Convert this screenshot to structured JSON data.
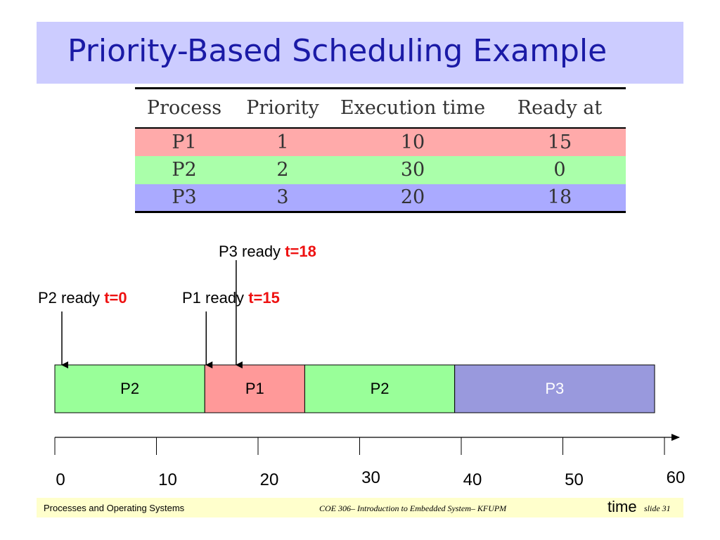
{
  "title": "Priority-Based Scheduling Example",
  "table": {
    "headers": [
      "Process",
      "Priority",
      "Execution time",
      "Ready at"
    ],
    "rows": [
      {
        "cells": [
          "P1",
          "1",
          "10",
          "15"
        ],
        "color": "#ffaaaa"
      },
      {
        "cells": [
          "P2",
          "2",
          "30",
          "0"
        ],
        "color": "#aaffaa"
      },
      {
        "cells": [
          "P3",
          "3",
          "20",
          "18"
        ],
        "color": "#aaaaff"
      }
    ]
  },
  "annotations": [
    {
      "text": "P2 ready",
      "time_label": "t=0",
      "t": 0
    },
    {
      "text": "P1 ready",
      "time_label": "t=15",
      "t": 15
    },
    {
      "text": "P3 ready",
      "time_label": "t=18",
      "t": 18
    }
  ],
  "timeline": {
    "segments": [
      {
        "label": "P2",
        "start": 0,
        "end": 15,
        "color": "#99ff99",
        "text_color": "#000000"
      },
      {
        "label": "P1",
        "start": 15,
        "end": 25,
        "color": "#ff9999",
        "text_color": "#000000"
      },
      {
        "label": "P2",
        "start": 25,
        "end": 40,
        "color": "#99ff99",
        "text_color": "#000000"
      },
      {
        "label": "P3",
        "start": 40,
        "end": 60,
        "color": "#9999dd",
        "text_color": "#ffffff"
      }
    ],
    "ticks": [
      "0",
      "10",
      "20",
      "30",
      "40",
      "50",
      "60"
    ],
    "axis_label": "time",
    "range": [
      0,
      60
    ]
  },
  "footer": {
    "left": "Processes and Operating Systems",
    "middle": "COE 306– Introduction to Embedded System– KFUPM",
    "slide": "slide 31"
  }
}
